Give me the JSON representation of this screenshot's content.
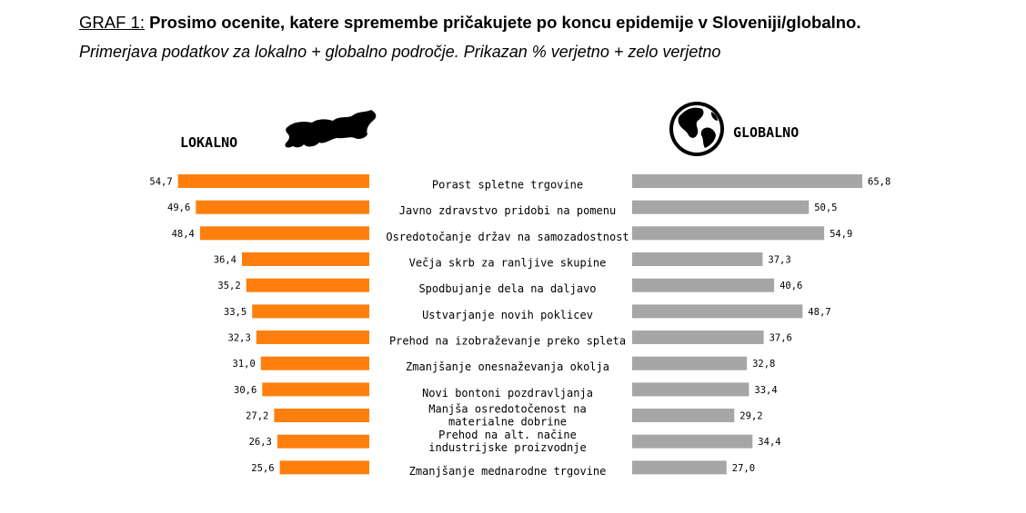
{
  "heading": {
    "prefix": "GRAF 1:",
    "title": "Prosimo ocenite, katere spremembe pričakujete po koncu epidemije v Sloveniji/globalno."
  },
  "subtitle": "Primerjava podatkov za lokalno + globalno področje. Prikazan % verjetno + zelo verjetno",
  "colors": {
    "local": "#ff7f0e",
    "global": "#a6a6a6",
    "text": "#000000"
  },
  "icons": {
    "local": "slovenia-map-icon",
    "global": "globe-icon"
  },
  "chart_data": {
    "type": "bar",
    "title": "Prosimo ocenite, katere spremembe pričakujete po koncu epidemije v Sloveniji/globalno.",
    "subtitle": "Primerjava podatkov za lokalno + globalno področje. Prikazan % verjetno + zelo verjetno",
    "orientation": "horizontal-butterfly",
    "categories": [
      [
        "Porast spletne trgovine"
      ],
      [
        "Javno zdravstvo pridobi na pomenu"
      ],
      [
        "Osredotočanje držav na samozadostnost"
      ],
      [
        "Večja skrb za ranljive skupine"
      ],
      [
        "Spodbujanje dela na daljavo"
      ],
      [
        "Ustvarjanje novih poklicev"
      ],
      [
        "Prehod na izobraževanje preko spleta"
      ],
      [
        "Zmanjšanje onesnaževanja okolja"
      ],
      [
        "Novi bontoni pozdravljanja"
      ],
      [
        "Manjša osredotočenost na",
        "materialne dobrine"
      ],
      [
        "Prehod na alt. načine",
        "industrijske proizvodnje"
      ],
      [
        "Zmanjšanje mednarodne trgovine"
      ]
    ],
    "series": [
      {
        "name": "LOKALNO",
        "values": [
          54.7,
          49.6,
          48.4,
          36.4,
          35.2,
          33.5,
          32.3,
          31.0,
          30.6,
          27.2,
          26.3,
          25.6
        ],
        "labels": [
          "54,7",
          "49,6",
          "48,4",
          "36,4",
          "35,2",
          "33,5",
          "32,3",
          "31,0",
          "30,6",
          "27,2",
          "26,3",
          "25,6"
        ]
      },
      {
        "name": "GLOBALNO",
        "values": [
          65.8,
          50.5,
          54.9,
          37.3,
          40.6,
          48.7,
          37.6,
          32.8,
          33.4,
          29.2,
          34.4,
          27.0
        ],
        "labels": [
          "65,8",
          "50,5",
          "54,9",
          "37,3",
          "40,6",
          "48,7",
          "37,6",
          "32,8",
          "33,4",
          "29,2",
          "34,4",
          "27,0"
        ]
      }
    ],
    "xlim": [
      0,
      70
    ],
    "grid": false,
    "legend": "top"
  }
}
